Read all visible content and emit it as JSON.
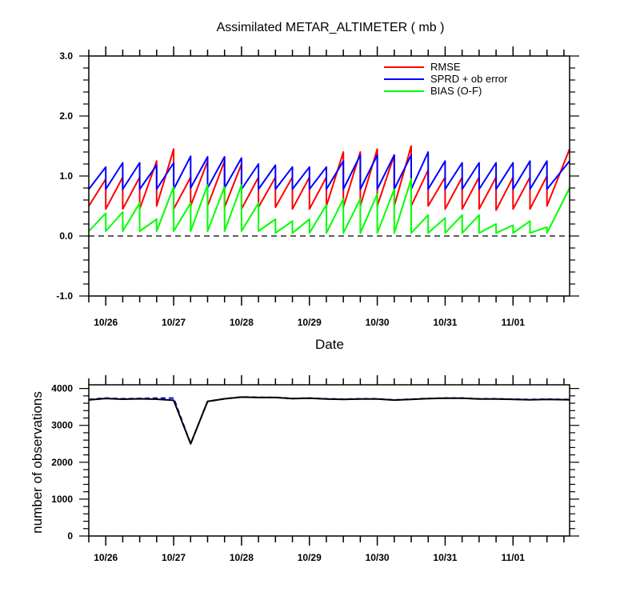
{
  "chart_data": [
    {
      "type": "line",
      "title": "Assimilated METAR_ALTIMETER ( mb )",
      "xlabel": "Date",
      "ylabel": "",
      "x_tick_labels": [
        "10/26",
        "10/27",
        "10/28",
        "10/29",
        "10/30",
        "10/31",
        "11/01"
      ],
      "xlim": [
        0,
        85
      ],
      "ylim": [
        -1.0,
        3.0
      ],
      "y_ticks": [
        "-1.0",
        "0.0",
        "1.0",
        "2.0",
        "3.0"
      ],
      "y_tick_values": [
        -1,
        0,
        1,
        2,
        3
      ],
      "x_tick_positions": [
        3,
        15,
        27,
        39,
        51,
        63,
        75
      ],
      "reference_line": {
        "y": 0,
        "style": "dashed",
        "color": "#000000"
      },
      "legend": {
        "placement": "top-right"
      },
      "series": [
        {
          "name": "RMSE",
          "color": "#ff0000",
          "points": [
            [
              0,
              0.5
            ],
            [
              3,
              0.95
            ],
            [
              3,
              0.45
            ],
            [
              6,
              0.98
            ],
            [
              6,
              0.45
            ],
            [
              9,
              0.98
            ],
            [
              9,
              0.45
            ],
            [
              12,
              1.25
            ],
            [
              12,
              0.5
            ],
            [
              15,
              1.45
            ],
            [
              15,
              0.45
            ],
            [
              18,
              0.98
            ],
            [
              18,
              0.5
            ],
            [
              21,
              1.25
            ],
            [
              21,
              0.5
            ],
            [
              24,
              1.25
            ],
            [
              24,
              0.48
            ],
            [
              27,
              1.2
            ],
            [
              27,
              0.45
            ],
            [
              30,
              0.98
            ],
            [
              30,
              0.48
            ],
            [
              33,
              0.98
            ],
            [
              33,
              0.48
            ],
            [
              36,
              0.98
            ],
            [
              36,
              0.45
            ],
            [
              39,
              0.98
            ],
            [
              39,
              0.45
            ],
            [
              42,
              0.98
            ],
            [
              42,
              0.5
            ],
            [
              45,
              1.4
            ],
            [
              45,
              0.48
            ],
            [
              48,
              1.4
            ],
            [
              48,
              0.5
            ],
            [
              51,
              1.45
            ],
            [
              51,
              0.5
            ],
            [
              54,
              1.35
            ],
            [
              54,
              0.5
            ],
            [
              57,
              1.5
            ],
            [
              57,
              0.5
            ],
            [
              60,
              1.1
            ],
            [
              60,
              0.5
            ],
            [
              63,
              0.98
            ],
            [
              63,
              0.45
            ],
            [
              66,
              0.98
            ],
            [
              66,
              0.45
            ],
            [
              69,
              0.98
            ],
            [
              69,
              0.45
            ],
            [
              72,
              0.98
            ],
            [
              72,
              0.43
            ],
            [
              75,
              0.98
            ],
            [
              75,
              0.45
            ],
            [
              78,
              0.98
            ],
            [
              78,
              0.45
            ],
            [
              81,
              1.0
            ],
            [
              81,
              0.5
            ],
            [
              85,
              1.45
            ]
          ]
        },
        {
          "name": "SPRD + ob error",
          "color": "#0000ff",
          "points": [
            [
              0,
              0.78
            ],
            [
              3,
              1.15
            ],
            [
              3,
              0.78
            ],
            [
              6,
              1.22
            ],
            [
              6,
              0.78
            ],
            [
              9,
              1.22
            ],
            [
              9,
              0.78
            ],
            [
              12,
              1.18
            ],
            [
              12,
              0.78
            ],
            [
              15,
              1.22
            ],
            [
              15,
              0.78
            ],
            [
              18,
              1.33
            ],
            [
              18,
              0.8
            ],
            [
              21,
              1.32
            ],
            [
              21,
              0.8
            ],
            [
              24,
              1.32
            ],
            [
              24,
              0.8
            ],
            [
              27,
              1.3
            ],
            [
              27,
              0.78
            ],
            [
              30,
              1.2
            ],
            [
              30,
              0.78
            ],
            [
              33,
              1.18
            ],
            [
              33,
              0.78
            ],
            [
              36,
              1.15
            ],
            [
              36,
              0.78
            ],
            [
              39,
              1.15
            ],
            [
              39,
              0.78
            ],
            [
              42,
              1.15
            ],
            [
              42,
              0.78
            ],
            [
              45,
              1.25
            ],
            [
              45,
              0.78
            ],
            [
              48,
              1.35
            ],
            [
              48,
              0.78
            ],
            [
              51,
              1.35
            ],
            [
              51,
              0.78
            ],
            [
              54,
              1.35
            ],
            [
              54,
              0.78
            ],
            [
              57,
              1.35
            ],
            [
              57,
              0.78
            ],
            [
              60,
              1.4
            ],
            [
              60,
              0.78
            ],
            [
              63,
              1.25
            ],
            [
              63,
              0.78
            ],
            [
              66,
              1.22
            ],
            [
              66,
              0.78
            ],
            [
              69,
              1.22
            ],
            [
              69,
              0.78
            ],
            [
              72,
              1.22
            ],
            [
              72,
              0.78
            ],
            [
              75,
              1.22
            ],
            [
              75,
              0.78
            ],
            [
              78,
              1.25
            ],
            [
              78,
              0.78
            ],
            [
              81,
              1.25
            ],
            [
              81,
              0.78
            ],
            [
              85,
              1.25
            ]
          ]
        },
        {
          "name": "BIAS (O-F)",
          "color": "#00ff00",
          "points": [
            [
              0,
              0.08
            ],
            [
              3,
              0.38
            ],
            [
              3,
              0.08
            ],
            [
              6,
              0.4
            ],
            [
              6,
              0.08
            ],
            [
              9,
              0.55
            ],
            [
              9,
              0.08
            ],
            [
              12,
              0.28
            ],
            [
              12,
              0.08
            ],
            [
              15,
              0.82
            ],
            [
              15,
              0.08
            ],
            [
              18,
              0.55
            ],
            [
              18,
              0.08
            ],
            [
              21,
              0.85
            ],
            [
              21,
              0.08
            ],
            [
              24,
              0.82
            ],
            [
              24,
              0.08
            ],
            [
              27,
              0.85
            ],
            [
              27,
              0.08
            ],
            [
              30,
              0.55
            ],
            [
              30,
              0.08
            ],
            [
              33,
              0.28
            ],
            [
              33,
              0.05
            ],
            [
              36,
              0.25
            ],
            [
              36,
              0.05
            ],
            [
              39,
              0.28
            ],
            [
              39,
              0.05
            ],
            [
              42,
              0.52
            ],
            [
              42,
              0.05
            ],
            [
              45,
              0.62
            ],
            [
              45,
              0.05
            ],
            [
              48,
              0.62
            ],
            [
              48,
              0.05
            ],
            [
              51,
              0.7
            ],
            [
              51,
              0.05
            ],
            [
              54,
              0.78
            ],
            [
              54,
              0.05
            ],
            [
              57,
              0.95
            ],
            [
              57,
              0.05
            ],
            [
              60,
              0.35
            ],
            [
              60,
              0.05
            ],
            [
              63,
              0.3
            ],
            [
              63,
              0.05
            ],
            [
              66,
              0.35
            ],
            [
              66,
              0.05
            ],
            [
              69,
              0.35
            ],
            [
              69,
              0.05
            ],
            [
              72,
              0.2
            ],
            [
              72,
              0.05
            ],
            [
              75,
              0.18
            ],
            [
              75,
              0.05
            ],
            [
              78,
              0.25
            ],
            [
              78,
              0.05
            ],
            [
              81,
              0.15
            ],
            [
              81,
              0.05
            ],
            [
              85,
              0.8
            ]
          ]
        }
      ]
    },
    {
      "type": "line",
      "title": "",
      "xlabel": "",
      "ylabel": "number of observations",
      "x_tick_labels": [
        "10/26",
        "10/27",
        "10/28",
        "10/29",
        "10/30",
        "10/31",
        "11/01"
      ],
      "x_tick_positions": [
        3,
        15,
        27,
        39,
        51,
        63,
        75
      ],
      "xlim": [
        0,
        85
      ],
      "ylim": [
        0,
        4100
      ],
      "y_ticks": [
        "0",
        "1000",
        "2000",
        "3000",
        "4000"
      ],
      "y_tick_values": [
        0,
        1000,
        2000,
        3000,
        4000
      ],
      "series": [
        {
          "name": "",
          "color": "#0000ff",
          "style": "dashed",
          "points": [
            [
              0,
              3700
            ],
            [
              3,
              3740
            ],
            [
              6,
              3720
            ],
            [
              9,
              3730
            ],
            [
              12,
              3740
            ],
            [
              15,
              3740
            ],
            [
              18,
              2500
            ],
            [
              21,
              3650
            ],
            [
              24,
              3720
            ],
            [
              27,
              3770
            ],
            [
              30,
              3760
            ],
            [
              33,
              3760
            ],
            [
              36,
              3730
            ],
            [
              39,
              3740
            ],
            [
              42,
              3720
            ],
            [
              45,
              3710
            ],
            [
              48,
              3720
            ],
            [
              51,
              3720
            ],
            [
              54,
              3690
            ],
            [
              57,
              3710
            ],
            [
              60,
              3730
            ],
            [
              63,
              3740
            ],
            [
              66,
              3740
            ],
            [
              69,
              3720
            ],
            [
              72,
              3720
            ],
            [
              75,
              3710
            ],
            [
              78,
              3700
            ],
            [
              81,
              3710
            ],
            [
              85,
              3700
            ]
          ]
        },
        {
          "name": "",
          "color": "#000000",
          "style": "solid",
          "points": [
            [
              0,
              3690
            ],
            [
              3,
              3730
            ],
            [
              6,
              3710
            ],
            [
              9,
              3720
            ],
            [
              12,
              3710
            ],
            [
              15,
              3680
            ],
            [
              18,
              2500
            ],
            [
              21,
              3650
            ],
            [
              24,
              3720
            ],
            [
              27,
              3765
            ],
            [
              30,
              3755
            ],
            [
              33,
              3755
            ],
            [
              36,
              3725
            ],
            [
              39,
              3735
            ],
            [
              42,
              3715
            ],
            [
              45,
              3705
            ],
            [
              48,
              3715
            ],
            [
              51,
              3715
            ],
            [
              54,
              3685
            ],
            [
              57,
              3705
            ],
            [
              60,
              3725
            ],
            [
              63,
              3735
            ],
            [
              66,
              3735
            ],
            [
              69,
              3715
            ],
            [
              72,
              3715
            ],
            [
              75,
              3705
            ],
            [
              78,
              3695
            ],
            [
              81,
              3705
            ],
            [
              85,
              3695
            ]
          ]
        }
      ]
    }
  ]
}
